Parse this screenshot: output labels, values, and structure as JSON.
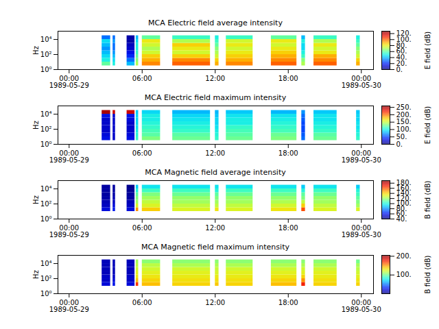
{
  "chart_data": [
    {
      "type": "heatmap",
      "title": "MCA  Electric field average intensity",
      "y_label": "Hz",
      "colorbar_label": "E field (dB)",
      "log": "y",
      "color": "jet",
      "xlim": [
        "1989-05-28T23:05",
        "1989-05-30T01:00"
      ],
      "xticks": [
        {
          "value": "1989-05-29T00:00",
          "label": "00:00\n1989-05-29"
        },
        {
          "value": "1989-05-29T06:00",
          "label": "06:00"
        },
        {
          "value": "1989-05-29T12:00",
          "label": "12:00"
        },
        {
          "value": "1989-05-29T18:00",
          "label": "18:00"
        },
        {
          "value": "1989-05-30T00:00",
          "label": "00:00\n1989-05-30"
        }
      ],
      "ylim": [
        1,
        125000
      ],
      "yticks": [
        {
          "value": 1,
          "label": "10⁰"
        },
        {
          "value": 100,
          "label": "10²"
        },
        {
          "value": 10000,
          "label": "10⁴"
        }
      ],
      "x": [
        "1989-05-29T02:42",
        "1989-05-29T03:36",
        "1989-05-29T04:45",
        "1989-05-29T05:30",
        "1989-05-29T06:00",
        "1989-05-29T08:30",
        "1989-05-29T12:00",
        "1989-05-29T12:54",
        "1989-05-29T16:36",
        "1989-05-29T19:06",
        "1989-05-29T20:06",
        "1989-05-29T23:36"
      ],
      "x_end": [
        "1989-05-29T03:24",
        "1989-05-29T03:48",
        "1989-05-29T05:24",
        "1989-05-29T05:42",
        "1989-05-29T07:30",
        "1989-05-29T11:36",
        "1989-05-29T12:18",
        "1989-05-29T15:06",
        "1989-05-29T18:42",
        "1989-05-29T19:24",
        "1989-05-29T22:00",
        "1989-05-29T23:54"
      ],
      "y_bins": [
        3.16,
        10,
        31.6,
        100,
        316,
        1000,
        3160,
        10000,
        31600
      ],
      "cells": [
        [
          60,
          50,
          45,
          40,
          35,
          40,
          45,
          30
        ],
        [
          50,
          45,
          40,
          35,
          30,
          30,
          35,
          30
        ],
        [
          40,
          30,
          20,
          15,
          10,
          8,
          5,
          5
        ],
        [
          70,
          65,
          60,
          55,
          50,
          50,
          45,
          40
        ],
        [
          95,
          90,
          85,
          75,
          70,
          75,
          80,
          60
        ],
        [
          100,
          95,
          85,
          75,
          80,
          85,
          70,
          55
        ],
        [
          90,
          85,
          75,
          70,
          65,
          60,
          55,
          50
        ],
        [
          95,
          90,
          85,
          80,
          75,
          80,
          75,
          55
        ],
        [
          100,
          95,
          90,
          85,
          80,
          75,
          80,
          60
        ],
        [
          70,
          65,
          55,
          50,
          45,
          45,
          50,
          40
        ],
        [
          100,
          95,
          90,
          80,
          75,
          80,
          70,
          55
        ],
        [
          90,
          85,
          75,
          70,
          65,
          60,
          55,
          50
        ]
      ],
      "colorbar_range": [
        0,
        128
      ],
      "colorbar_ticks": [
        {
          "value": 0,
          "label": "0."
        },
        {
          "value": 20,
          "label": "20."
        },
        {
          "value": 40,
          "label": "40."
        },
        {
          "value": 60,
          "label": "60."
        },
        {
          "value": 80,
          "label": "80."
        },
        {
          "value": 100,
          "label": "100."
        },
        {
          "value": 120,
          "label": "120."
        }
      ]
    },
    {
      "type": "heatmap",
      "title": "MCA  Electric field maximum intensity",
      "y_label": "Hz",
      "colorbar_label": "E field (dB)",
      "log": "y",
      "color": "jet",
      "xlim": [
        "1989-05-28T23:05",
        "1989-05-30T01:00"
      ],
      "xticks": [
        {
          "value": "1989-05-29T00:00",
          "label": "00:00\n1989-05-29"
        },
        {
          "value": "1989-05-29T06:00",
          "label": "06:00"
        },
        {
          "value": "1989-05-29T12:00",
          "label": "12:00"
        },
        {
          "value": "1989-05-29T18:00",
          "label": "18:00"
        },
        {
          "value": "1989-05-30T00:00",
          "label": "00:00\n1989-05-30"
        }
      ],
      "ylim": [
        1,
        125000
      ],
      "yticks": [
        {
          "value": 1,
          "label": "10⁰"
        },
        {
          "value": 100,
          "label": "10²"
        },
        {
          "value": 10000,
          "label": "10⁴"
        }
      ],
      "x": [
        "1989-05-29T02:42",
        "1989-05-29T03:36",
        "1989-05-29T04:45",
        "1989-05-29T05:30",
        "1989-05-29T06:00",
        "1989-05-29T08:30",
        "1989-05-29T12:00",
        "1989-05-29T12:54",
        "1989-05-29T16:36",
        "1989-05-29T19:06",
        "1989-05-29T20:06",
        "1989-05-29T23:36"
      ],
      "x_end": [
        "1989-05-29T03:24",
        "1989-05-29T03:48",
        "1989-05-29T05:24",
        "1989-05-29T05:42",
        "1989-05-29T07:30",
        "1989-05-29T11:36",
        "1989-05-29T12:18",
        "1989-05-29T15:06",
        "1989-05-29T18:42",
        "1989-05-29T19:24",
        "1989-05-29T22:00",
        "1989-05-29T23:54"
      ],
      "y_bins": [
        3.16,
        10,
        31.6,
        100,
        316,
        1000,
        3160,
        10000,
        31600
      ],
      "cells": [
        [
          30,
          25,
          20,
          20,
          20,
          20,
          30,
          250
        ],
        [
          20,
          20,
          20,
          20,
          20,
          20,
          20,
          240
        ],
        [
          30,
          25,
          20,
          20,
          20,
          25,
          30,
          240
        ],
        [
          110,
          105,
          100,
          95,
          90,
          90,
          90,
          85
        ],
        [
          130,
          120,
          115,
          110,
          105,
          100,
          100,
          90
        ],
        [
          125,
          120,
          110,
          105,
          100,
          95,
          90,
          80
        ],
        [
          110,
          105,
          100,
          95,
          90,
          90,
          85,
          80
        ],
        [
          125,
          120,
          115,
          110,
          100,
          100,
          95,
          85
        ],
        [
          130,
          125,
          115,
          110,
          105,
          100,
          95,
          80
        ],
        [
          60,
          55,
          50,
          50,
          50,
          55,
          60,
          70
        ],
        [
          125,
          120,
          110,
          105,
          100,
          95,
          95,
          85
        ],
        [
          110,
          105,
          100,
          95,
          95,
          90,
          90,
          85
        ]
      ],
      "colorbar_range": [
        0,
        260
      ],
      "colorbar_ticks": [
        {
          "value": 0,
          "label": "0."
        },
        {
          "value": 50,
          "label": "50."
        },
        {
          "value": 100,
          "label": "100."
        },
        {
          "value": 150,
          "label": "150."
        },
        {
          "value": 200,
          "label": "200."
        },
        {
          "value": 250,
          "label": "250."
        }
      ]
    },
    {
      "type": "heatmap",
      "title": "MCA  Magnetic field average intensity",
      "y_label": "Hz",
      "colorbar_label": "B field (dB)",
      "log": "y",
      "color": "jet",
      "xlim": [
        "1989-05-28T23:05",
        "1989-05-30T01:00"
      ],
      "xticks": [
        {
          "value": "1989-05-29T00:00",
          "label": "00:00\n1989-05-29"
        },
        {
          "value": "1989-05-29T06:00",
          "label": "06:00"
        },
        {
          "value": "1989-05-29T12:00",
          "label": "12:00"
        },
        {
          "value": "1989-05-29T18:00",
          "label": "18:00"
        },
        {
          "value": "1989-05-30T00:00",
          "label": "00:00\n1989-05-30"
        }
      ],
      "ylim": [
        1,
        125000
      ],
      "yticks": [
        {
          "value": 1,
          "label": "10⁰"
        },
        {
          "value": 100,
          "label": "10²"
        },
        {
          "value": 10000,
          "label": "10⁴"
        }
      ],
      "x": [
        "1989-05-29T02:42",
        "1989-05-29T03:36",
        "1989-05-29T04:45",
        "1989-05-29T05:30",
        "1989-05-29T06:00",
        "1989-05-29T08:30",
        "1989-05-29T12:00",
        "1989-05-29T12:54",
        "1989-05-29T16:36",
        "1989-05-29T19:06",
        "1989-05-29T20:06",
        "1989-05-29T23:36"
      ],
      "x_end": [
        "1989-05-29T03:24",
        "1989-05-29T03:48",
        "1989-05-29T05:24",
        "1989-05-29T05:42",
        "1989-05-29T07:30",
        "1989-05-29T11:36",
        "1989-05-29T12:18",
        "1989-05-29T15:06",
        "1989-05-29T18:42",
        "1989-05-29T19:24",
        "1989-05-29T22:00",
        "1989-05-29T23:54"
      ],
      "y_bins": [
        10,
        31.6,
        100,
        316,
        1000,
        3160,
        10000,
        31600
      ],
      "cells": [
        [
          55,
          50,
          48,
          46,
          45,
          45,
          45
        ],
        [
          60,
          55,
          50,
          48,
          46,
          45,
          45
        ],
        [
          55,
          50,
          48,
          45,
          44,
          43,
          42
        ],
        [
          150,
          130,
          120,
          115,
          110,
          100,
          90
        ],
        [
          140,
          130,
          125,
          120,
          115,
          105,
          95
        ],
        [
          130,
          125,
          120,
          118,
          112,
          105,
          95
        ],
        [
          135,
          125,
          120,
          115,
          110,
          100,
          95
        ],
        [
          130,
          125,
          120,
          118,
          112,
          105,
          95
        ],
        [
          135,
          128,
          122,
          118,
          112,
          105,
          95
        ],
        [
          160,
          140,
          125,
          115,
          110,
          100,
          90
        ],
        [
          130,
          125,
          120,
          118,
          112,
          105,
          95
        ],
        [
          130,
          120,
          115,
          110,
          105,
          100,
          90
        ]
      ],
      "colorbar_range": [
        40,
        190
      ],
      "colorbar_ticks": [
        {
          "value": 40,
          "label": "40."
        },
        {
          "value": 60,
          "label": "60."
        },
        {
          "value": 80,
          "label": "80."
        },
        {
          "value": 100,
          "label": "100."
        },
        {
          "value": 120,
          "label": "120."
        },
        {
          "value": 140,
          "label": "140."
        },
        {
          "value": 160,
          "label": "160."
        },
        {
          "value": 180,
          "label": "180."
        }
      ]
    },
    {
      "type": "heatmap",
      "title": "MCA  Magnetic field maximum intensity",
      "y_label": "Hz",
      "colorbar_label": "B field (dB)",
      "log": "y",
      "color": "jet",
      "xlim": [
        "1989-05-28T23:05",
        "1989-05-30T01:00"
      ],
      "xticks": [
        {
          "value": "1989-05-29T00:00",
          "label": "00:00\n1989-05-29"
        },
        {
          "value": "1989-05-29T06:00",
          "label": "06:00"
        },
        {
          "value": "1989-05-29T12:00",
          "label": "12:00"
        },
        {
          "value": "1989-05-29T18:00",
          "label": "18:00"
        },
        {
          "value": "1989-05-30T00:00",
          "label": "00:00\n1989-05-30"
        }
      ],
      "ylim": [
        1,
        125000
      ],
      "yticks": [
        {
          "value": 1,
          "label": "10⁰"
        },
        {
          "value": 100,
          "label": "10²"
        },
        {
          "value": 10000,
          "label": "10⁴"
        }
      ],
      "x": [
        "1989-05-29T02:42",
        "1989-05-29T03:36",
        "1989-05-29T04:45",
        "1989-05-29T05:30",
        "1989-05-29T06:00",
        "1989-05-29T08:30",
        "1989-05-29T12:00",
        "1989-05-29T12:54",
        "1989-05-29T16:36",
        "1989-05-29T19:06",
        "1989-05-29T20:06",
        "1989-05-29T23:36"
      ],
      "x_end": [
        "1989-05-29T03:24",
        "1989-05-29T03:48",
        "1989-05-29T05:24",
        "1989-05-29T05:42",
        "1989-05-29T07:30",
        "1989-05-29T11:36",
        "1989-05-29T12:18",
        "1989-05-29T15:06",
        "1989-05-29T18:42",
        "1989-05-29T19:24",
        "1989-05-29T22:00",
        "1989-05-29T23:54"
      ],
      "y_bins": [
        10,
        31.6,
        100,
        316,
        1000,
        3160,
        10000,
        31600
      ],
      "cells": [
        [
          20,
          15,
          15,
          12,
          12,
          12,
          12
        ],
        [
          25,
          20,
          15,
          12,
          12,
          12,
          12
        ],
        [
          20,
          15,
          15,
          12,
          12,
          12,
          12
        ],
        [
          170,
          140,
          130,
          125,
          120,
          115,
          110
        ],
        [
          140,
          135,
          130,
          125,
          120,
          115,
          105
        ],
        [
          135,
          132,
          128,
          125,
          120,
          112,
          105
        ],
        [
          138,
          132,
          128,
          122,
          118,
          112,
          105
        ],
        [
          135,
          132,
          128,
          125,
          120,
          112,
          105
        ],
        [
          140,
          135,
          130,
          125,
          120,
          112,
          105
        ],
        [
          175,
          150,
          135,
          125,
          120,
          112,
          105
        ],
        [
          135,
          132,
          128,
          125,
          120,
          112,
          105
        ],
        [
          135,
          130,
          125,
          120,
          115,
          110,
          100
        ]
      ],
      "colorbar_range": [
        0,
        205
      ],
      "colorbar_ticks": [
        {
          "value": 100,
          "label": "100."
        },
        {
          "value": 200,
          "label": "200."
        }
      ]
    }
  ]
}
